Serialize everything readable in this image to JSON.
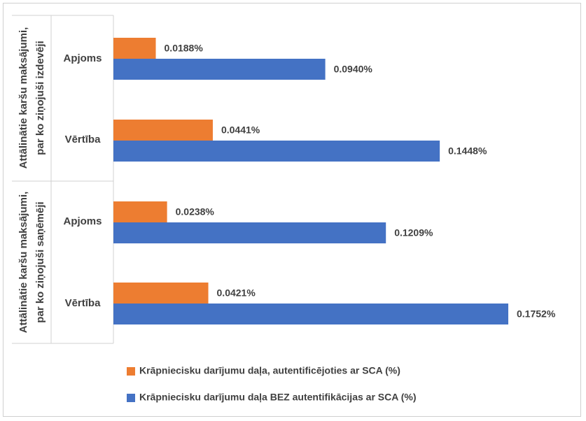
{
  "chart_data": {
    "type": "bar",
    "orientation": "horizontal",
    "groups": [
      {
        "label_lines": [
          "Attālinātie karšu maksājumi,",
          "par ko ziņojuši izdevēji"
        ],
        "categories": [
          "Apjoms",
          "Vērtība"
        ]
      },
      {
        "label_lines": [
          "Attālinātie karšu maksājumi,",
          "par ko ziņojuši saņēmēji"
        ],
        "categories": [
          "Apjoms",
          "Vērtība"
        ]
      }
    ],
    "series": [
      {
        "name": "Krāpniecisku darījumu daļa, autentificējoties ar SCA (%)",
        "color": "#ED7D31",
        "values": [
          0.0188,
          0.0441,
          0.0238,
          0.0421
        ],
        "labels": [
          "0.0188%",
          "0.0441%",
          "0.0238%",
          "0.0421%"
        ]
      },
      {
        "name": "Krāpniecisku darījumu daļa BEZ autentifikācijas ar SCA (%)",
        "color": "#4472C4",
        "values": [
          0.094,
          0.1448,
          0.1209,
          0.1752
        ],
        "labels": [
          "0.0940%",
          "0.1448%",
          "0.1209%",
          "0.1752%"
        ]
      }
    ],
    "xlim": [
      0,
      0.1752
    ],
    "grid": false,
    "legend_position": "bottom"
  }
}
